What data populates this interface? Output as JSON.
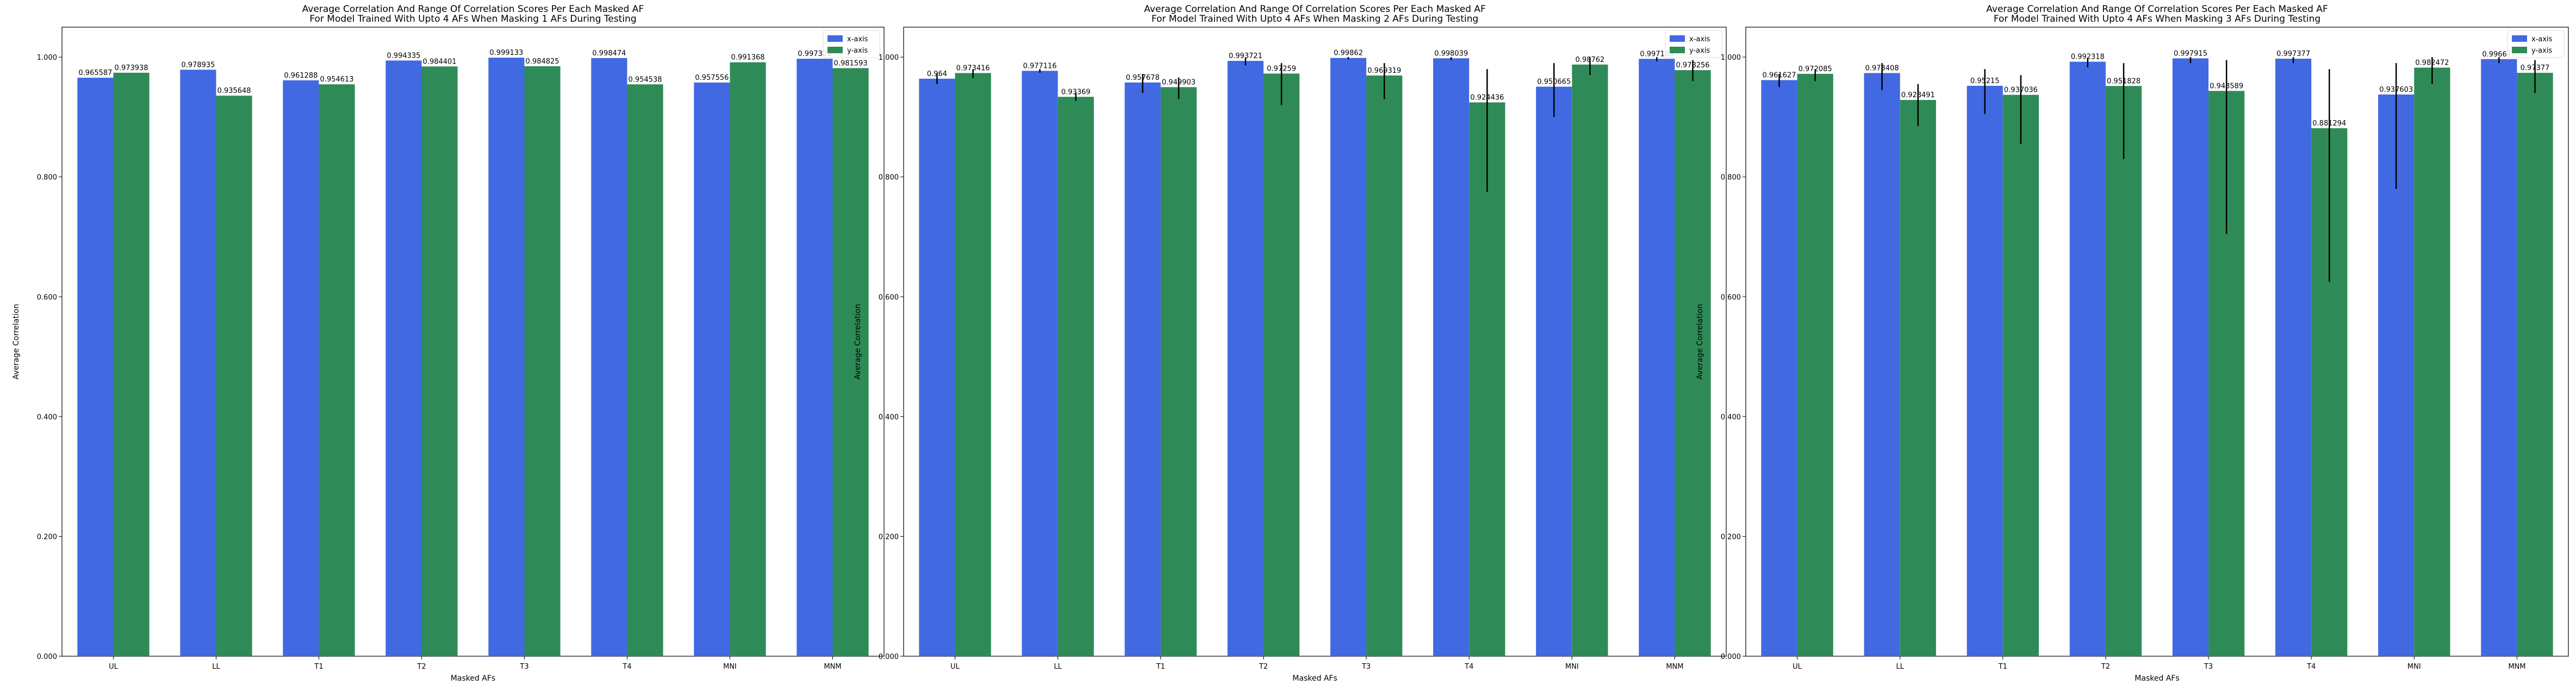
{
  "chart_data": [
    {
      "type": "bar",
      "title": "Average Correlation And Range Of Correlation Scores Per Each Masked AF\nFor Model Trained With Upto 4 AFs When Masking 1 AFs During Testing",
      "xlabel": "Masked AFs",
      "ylabel": "Average Correlation",
      "ylim": [
        0,
        1.05
      ],
      "yticks": [
        "0.000",
        "0.200",
        "0.400",
        "0.600",
        "0.800",
        "1.000"
      ],
      "legend_position": "top-right",
      "categories": [
        "UL",
        "LL",
        "T1",
        "T2",
        "T3",
        "T4",
        "MNI",
        "MNM"
      ],
      "series": [
        {
          "name": "x-axis",
          "color": "#4169E1",
          "values": [
            0.965587,
            0.978935,
            0.961288,
            0.994335,
            0.999133,
            0.998474,
            0.957556,
            0.997301
          ],
          "labels": [
            "0.965587",
            "0.978935",
            "0.961288",
            "0.994335",
            "0.999133",
            "0.998474",
            "0.957556",
            "0.997301"
          ],
          "err_low": [
            0.965587,
            0.978935,
            0.961288,
            0.994335,
            0.999133,
            0.998474,
            0.957556,
            0.997301
          ],
          "err_high": [
            0.965587,
            0.978935,
            0.961288,
            0.994335,
            0.999133,
            0.998474,
            0.957556,
            0.997301
          ]
        },
        {
          "name": "y-axis",
          "color": "#2E8B57",
          "values": [
            0.973938,
            0.935648,
            0.954613,
            0.984401,
            0.984825,
            0.954538,
            0.991368,
            0.981593
          ],
          "labels": [
            "0.973938",
            "0.935648",
            "0.954613",
            "0.984401",
            "0.984825",
            "0.954538",
            "0.991368",
            "0.981593"
          ],
          "err_low": [
            0.973938,
            0.935648,
            0.954613,
            0.984401,
            0.984825,
            0.954538,
            0.991368,
            0.981593
          ],
          "err_high": [
            0.973938,
            0.935648,
            0.954613,
            0.984401,
            0.984825,
            0.954538,
            0.991368,
            0.981593
          ]
        }
      ]
    },
    {
      "type": "bar",
      "title": "Average Correlation And Range Of Correlation Scores Per Each Masked AF\nFor Model Trained With Upto 4 AFs When Masking 2 AFs During Testing",
      "xlabel": "Masked AFs",
      "ylabel": "Average Correlation",
      "ylim": [
        0,
        1.05
      ],
      "yticks": [
        "0.000",
        "0.200",
        "0.400",
        "0.600",
        "0.800",
        "1.000"
      ],
      "legend_position": "top-right",
      "categories": [
        "UL",
        "LL",
        "T1",
        "T2",
        "T3",
        "T4",
        "MNI",
        "MNM"
      ],
      "series": [
        {
          "name": "x-axis",
          "color": "#4169E1",
          "values": [
            0.964,
            0.977116,
            0.957678,
            0.993721,
            0.99862,
            0.998039,
            0.950665,
            0.997135
          ],
          "labels": [
            "0.964",
            "0.977116",
            "0.957678",
            "0.993721",
            "0.99862",
            "0.998039",
            "0.950665",
            "0.997135"
          ],
          "err_low": [
            0.955,
            0.974,
            0.94,
            0.986,
            0.996,
            0.995,
            0.9,
            0.993
          ],
          "err_high": [
            0.972,
            0.98,
            0.972,
            0.999,
            1.0,
            1.0,
            0.99,
            1.0
          ]
        },
        {
          "name": "y-axis",
          "color": "#2E8B57",
          "values": [
            0.973416,
            0.93369,
            0.949903,
            0.97259,
            0.969319,
            0.924436,
            0.98762,
            0.978256
          ],
          "labels": [
            "0.973416",
            "0.93369",
            "0.949903",
            "0.97259",
            "0.969319",
            "0.924436",
            "0.98762",
            "0.978256"
          ],
          "err_low": [
            0.965,
            0.927,
            0.93,
            0.92,
            0.93,
            0.775,
            0.97,
            0.96
          ],
          "err_high": [
            0.98,
            0.941,
            0.966,
            0.99,
            0.99,
            0.98,
            1.0,
            0.995
          ]
        }
      ]
    },
    {
      "type": "bar",
      "title": "Average Correlation And Range Of Correlation Scores Per Each Masked AF\nFor Model Trained With Upto 4 AFs When Masking 3 AFs During Testing",
      "xlabel": "Masked AFs",
      "ylabel": "Average Correlation",
      "ylim": [
        0,
        1.05
      ],
      "yticks": [
        "0.000",
        "0.200",
        "0.400",
        "0.600",
        "0.800",
        "1.000"
      ],
      "legend_position": "top-right",
      "categories": [
        "UL",
        "LL",
        "T1",
        "T2",
        "T3",
        "T4",
        "MNI",
        "MNM"
      ],
      "series": [
        {
          "name": "x-axis",
          "color": "#4169E1",
          "values": [
            0.961627,
            0.973408,
            0.95215,
            0.992318,
            0.997915,
            0.997377,
            0.937603,
            0.996677
          ],
          "labels": [
            "0.961627",
            "0.973408",
            "0.95215",
            "0.992318",
            "0.997915",
            "0.997377",
            "0.937603",
            "0.996677"
          ],
          "err_low": [
            0.95,
            0.945,
            0.905,
            0.983,
            0.99,
            0.99,
            0.78,
            0.99
          ],
          "err_high": [
            0.972,
            0.99,
            0.98,
            0.999,
            1.0,
            1.0,
            0.99,
            1.0
          ]
        },
        {
          "name": "y-axis",
          "color": "#2E8B57",
          "values": [
            0.972085,
            0.928491,
            0.937036,
            0.951828,
            0.943589,
            0.881294,
            0.982472,
            0.97377
          ],
          "labels": [
            "0.972085",
            "0.928491",
            "0.937036",
            "0.951828",
            "0.943589",
            "0.881294",
            "0.982472",
            "0.97377"
          ],
          "err_low": [
            0.96,
            0.885,
            0.855,
            0.83,
            0.705,
            0.625,
            0.955,
            0.94
          ],
          "err_high": [
            0.98,
            0.955,
            0.97,
            0.99,
            0.995,
            0.98,
            1.0,
            0.995
          ]
        }
      ]
    }
  ]
}
